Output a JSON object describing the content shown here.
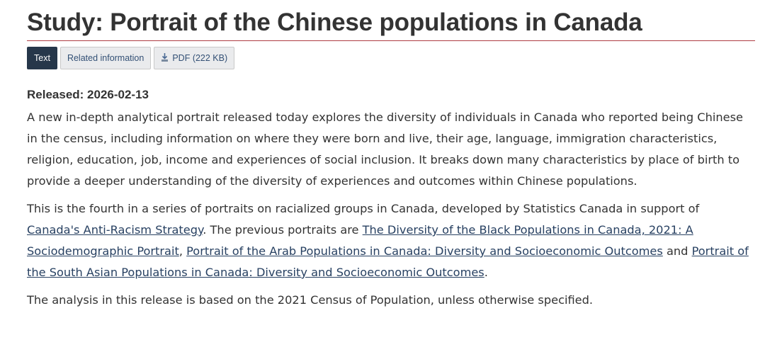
{
  "title": "Study: Portrait of the Chinese populations in Canada",
  "tabs": {
    "text": "Text",
    "related": "Related information",
    "pdf": "PDF (222 KB)"
  },
  "released": "Released: 2026-02-13",
  "paragraph1": "A new in-depth analytical portrait released today explores the diversity of individuals in Canada who reported being Chinese in the census, including information on where they were born and live, their age, language, immigration characteristics, religion, education, job, income and experiences of social inclusion. It breaks down many characteristics by place of birth to provide a deeper understanding of the diversity of experiences and outcomes within Chinese populations.",
  "paragraph2": {
    "intro": "This is the fourth in a series of portraits on racialized groups in Canada, developed by Statistics Canada in support of ",
    "link1": "Canada's Anti-Racism Strategy",
    "mid1": ". The previous portraits are ",
    "link2": "The Diversity of the Black Populations in Canada, 2021: A Sociodemographic Portrait",
    "mid2": ", ",
    "link3": "Portrait of the Arab Populations in Canada: Diversity and Socioeconomic Outcomes",
    "mid3": " and ",
    "link4": "Portrait of the South Asian Populations in Canada: Diversity and Socioeconomic Outcomes",
    "end": "."
  },
  "paragraph3": "The analysis in this release is based on the 2021 Census of Population, unless otherwise specified.",
  "colors": {
    "rule": "#af3c43",
    "active_tab": "#26374a",
    "link": "#284162"
  },
  "icons": {
    "pdf": "pdf-download-icon"
  }
}
